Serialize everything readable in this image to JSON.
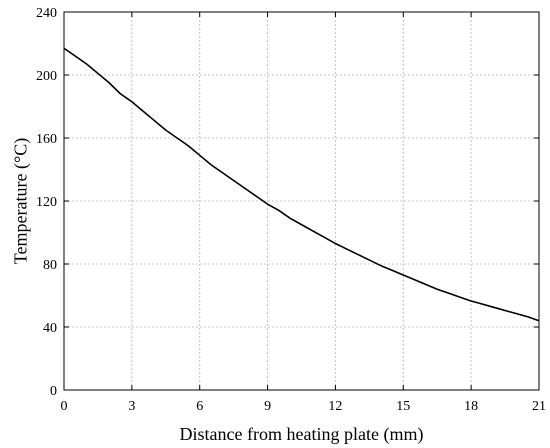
{
  "chart_data": {
    "type": "line",
    "xlabel": "Distance from heating plate (mm)",
    "ylabel": "Temperature (°C)",
    "xlim": [
      0,
      21
    ],
    "ylim": [
      0,
      240
    ],
    "xticks": [
      0,
      3,
      6,
      9,
      12,
      15,
      18,
      21
    ],
    "yticks": [
      0,
      40,
      80,
      120,
      160,
      200,
      240
    ],
    "grid": true,
    "series": [
      {
        "color": "#000000",
        "x": [
          0,
          0.2,
          0.5,
          1,
          1.5,
          2,
          2.5,
          3,
          3.5,
          4,
          4.5,
          5,
          5.5,
          6,
          6.5,
          7,
          7.5,
          8,
          8.5,
          9,
          9.5,
          10,
          10.5,
          11,
          11.5,
          12,
          12.5,
          13,
          13.5,
          14,
          14.5,
          15,
          15.5,
          16,
          16.5,
          17,
          17.5,
          18,
          18.5,
          19,
          19.5,
          20,
          20.5,
          21
        ],
        "values": [
          217,
          215,
          212,
          207,
          201,
          195,
          188,
          183,
          177,
          171,
          165,
          160,
          155,
          149,
          143,
          138,
          133,
          128,
          123,
          118,
          114,
          109,
          105,
          101,
          97,
          93,
          89.5,
          86,
          82.5,
          79,
          76,
          73,
          70,
          67,
          64,
          61.5,
          59,
          56.5,
          54.5,
          52.5,
          50.5,
          48.5,
          46.5,
          44
        ]
      }
    ]
  }
}
